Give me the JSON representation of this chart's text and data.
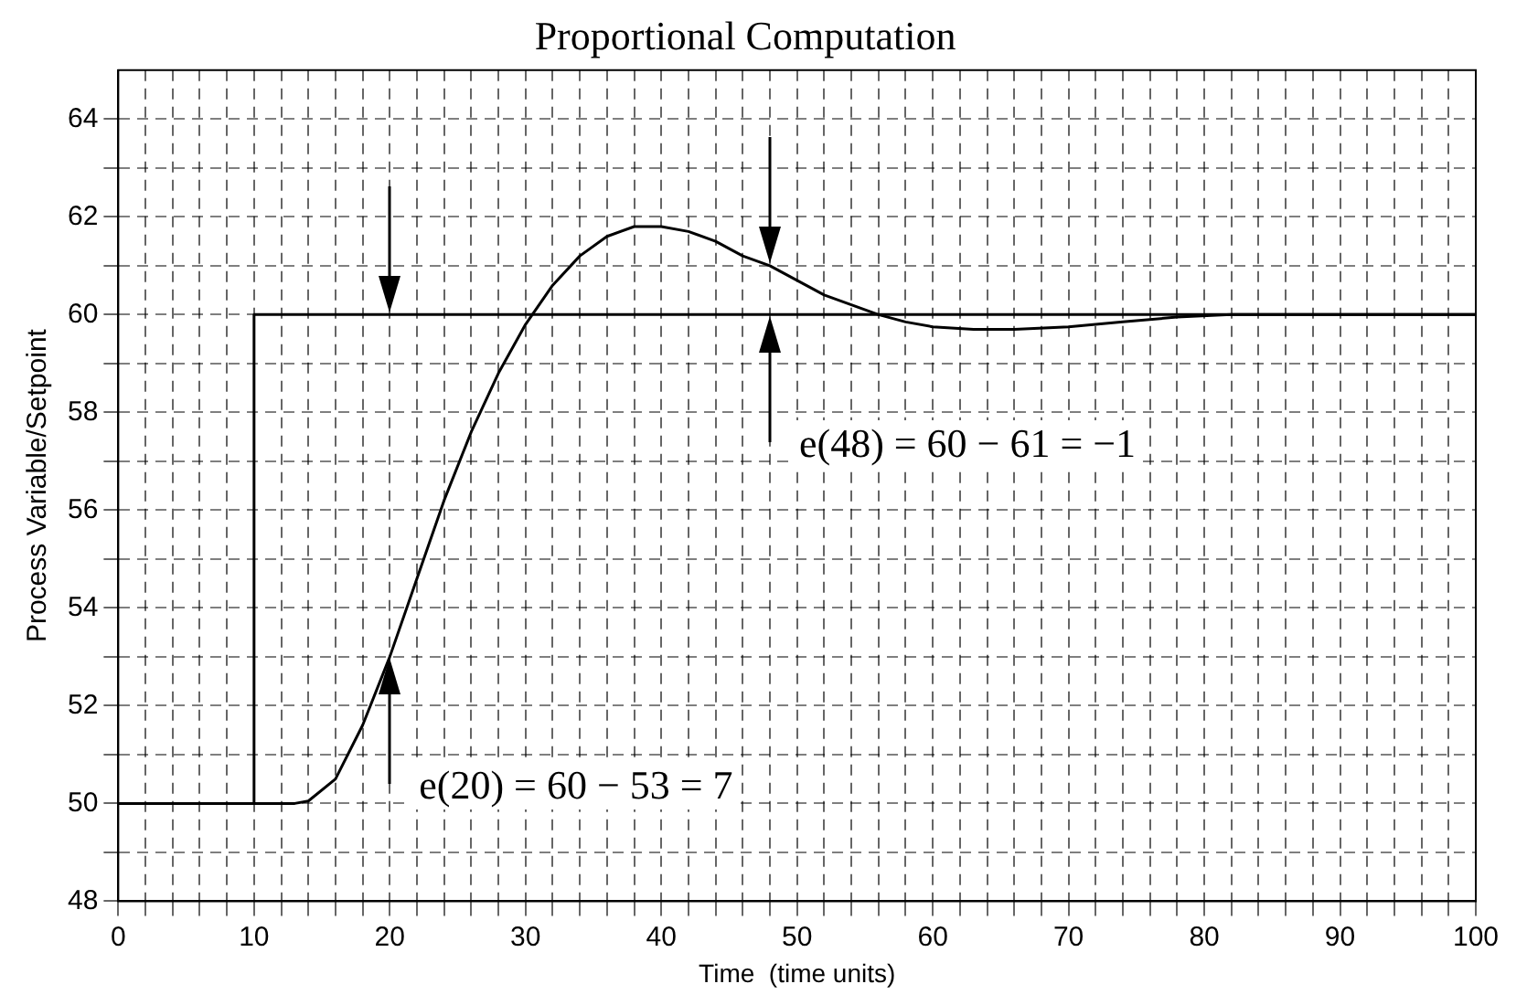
{
  "chart_data": {
    "type": "line",
    "title": "Proportional Computation",
    "xlabel": "Time  (time units)",
    "ylabel": "Process Variable/Setpoint",
    "xlim": [
      0,
      100
    ],
    "ylim": [
      48,
      65
    ],
    "xticks": [
      0,
      {
        "value": 2,
        "label": null
      },
      {
        "value": 4,
        "label": null
      },
      {
        "value": 6,
        "label": null
      },
      {
        "value": 8,
        "label": null
      },
      10,
      {
        "value": 12,
        "label": null
      },
      {
        "value": 14,
        "label": null
      },
      {
        "value": 16,
        "label": null
      },
      {
        "value": 18,
        "label": null
      },
      20,
      {
        "value": 22,
        "label": null
      },
      {
        "value": 24,
        "label": null
      },
      {
        "value": 26,
        "label": null
      },
      {
        "value": 28,
        "label": null
      },
      30,
      {
        "value": 32,
        "label": null
      },
      {
        "value": 34,
        "label": null
      },
      {
        "value": 36,
        "label": null
      },
      {
        "value": 38,
        "label": null
      },
      40,
      {
        "value": 42,
        "label": null
      },
      {
        "value": 44,
        "label": null
      },
      {
        "value": 46,
        "label": null
      },
      {
        "value": 48,
        "label": null
      },
      50,
      {
        "value": 52,
        "label": null
      },
      {
        "value": 54,
        "label": null
      },
      {
        "value": 56,
        "label": null
      },
      {
        "value": 58,
        "label": null
      },
      60,
      {
        "value": 62,
        "label": null
      },
      {
        "value": 64,
        "label": null
      },
      {
        "value": 66,
        "label": null
      },
      {
        "value": 68,
        "label": null
      },
      70,
      {
        "value": 72,
        "label": null
      },
      {
        "value": 74,
        "label": null
      },
      {
        "value": 76,
        "label": null
      },
      {
        "value": 78,
        "label": null
      },
      80,
      {
        "value": 82,
        "label": null
      },
      {
        "value": 84,
        "label": null
      },
      {
        "value": 86,
        "label": null
      },
      {
        "value": 88,
        "label": null
      },
      90,
      {
        "value": 92,
        "label": null
      },
      {
        "value": 94,
        "label": null
      },
      {
        "value": 96,
        "label": null
      },
      {
        "value": 98,
        "label": null
      },
      100
    ],
    "yticks": [
      48,
      {
        "value": 49,
        "label": null
      },
      50,
      {
        "value": 51,
        "label": null
      },
      52,
      {
        "value": 53,
        "label": null
      },
      54,
      {
        "value": 55,
        "label": null
      },
      56,
      {
        "value": 57,
        "label": null
      },
      58,
      {
        "value": 59,
        "label": null
      },
      60,
      {
        "value": 61,
        "label": null
      },
      62,
      {
        "value": 63,
        "label": null
      },
      64
    ],
    "grid": true,
    "legend": false,
    "marker": "none",
    "line_style": "solid",
    "series": [
      {
        "color": "#000000",
        "x": [
          0,
          10,
          10,
          100
        ],
        "values": [
          50,
          50,
          60,
          60
        ]
      },
      {
        "color": "#000000",
        "x": [
          0,
          13,
          14,
          16,
          18,
          20,
          22,
          24,
          26,
          28,
          30,
          32,
          34,
          36,
          38,
          40,
          42,
          44,
          46,
          48,
          50,
          52,
          54,
          56,
          58,
          60,
          63,
          66,
          70,
          74,
          78,
          82,
          90,
          100
        ],
        "values": [
          50,
          50,
          50.05,
          50.5,
          51.6,
          53,
          54.6,
          56.2,
          57.6,
          58.8,
          59.8,
          60.6,
          61.2,
          61.6,
          61.8,
          61.8,
          61.7,
          61.5,
          61.2,
          61,
          60.7,
          60.4,
          60.2,
          60,
          59.85,
          59.75,
          59.7,
          59.7,
          59.75,
          59.85,
          59.95,
          60,
          60,
          60
        ]
      }
    ],
    "annotations": [
      {
        "text": "e(20) = 60 − 53 = 7",
        "x": 20,
        "y": 53
      },
      {
        "text": "e(48) = 60 − 61 = −1",
        "x": 48,
        "y": 60
      }
    ]
  }
}
